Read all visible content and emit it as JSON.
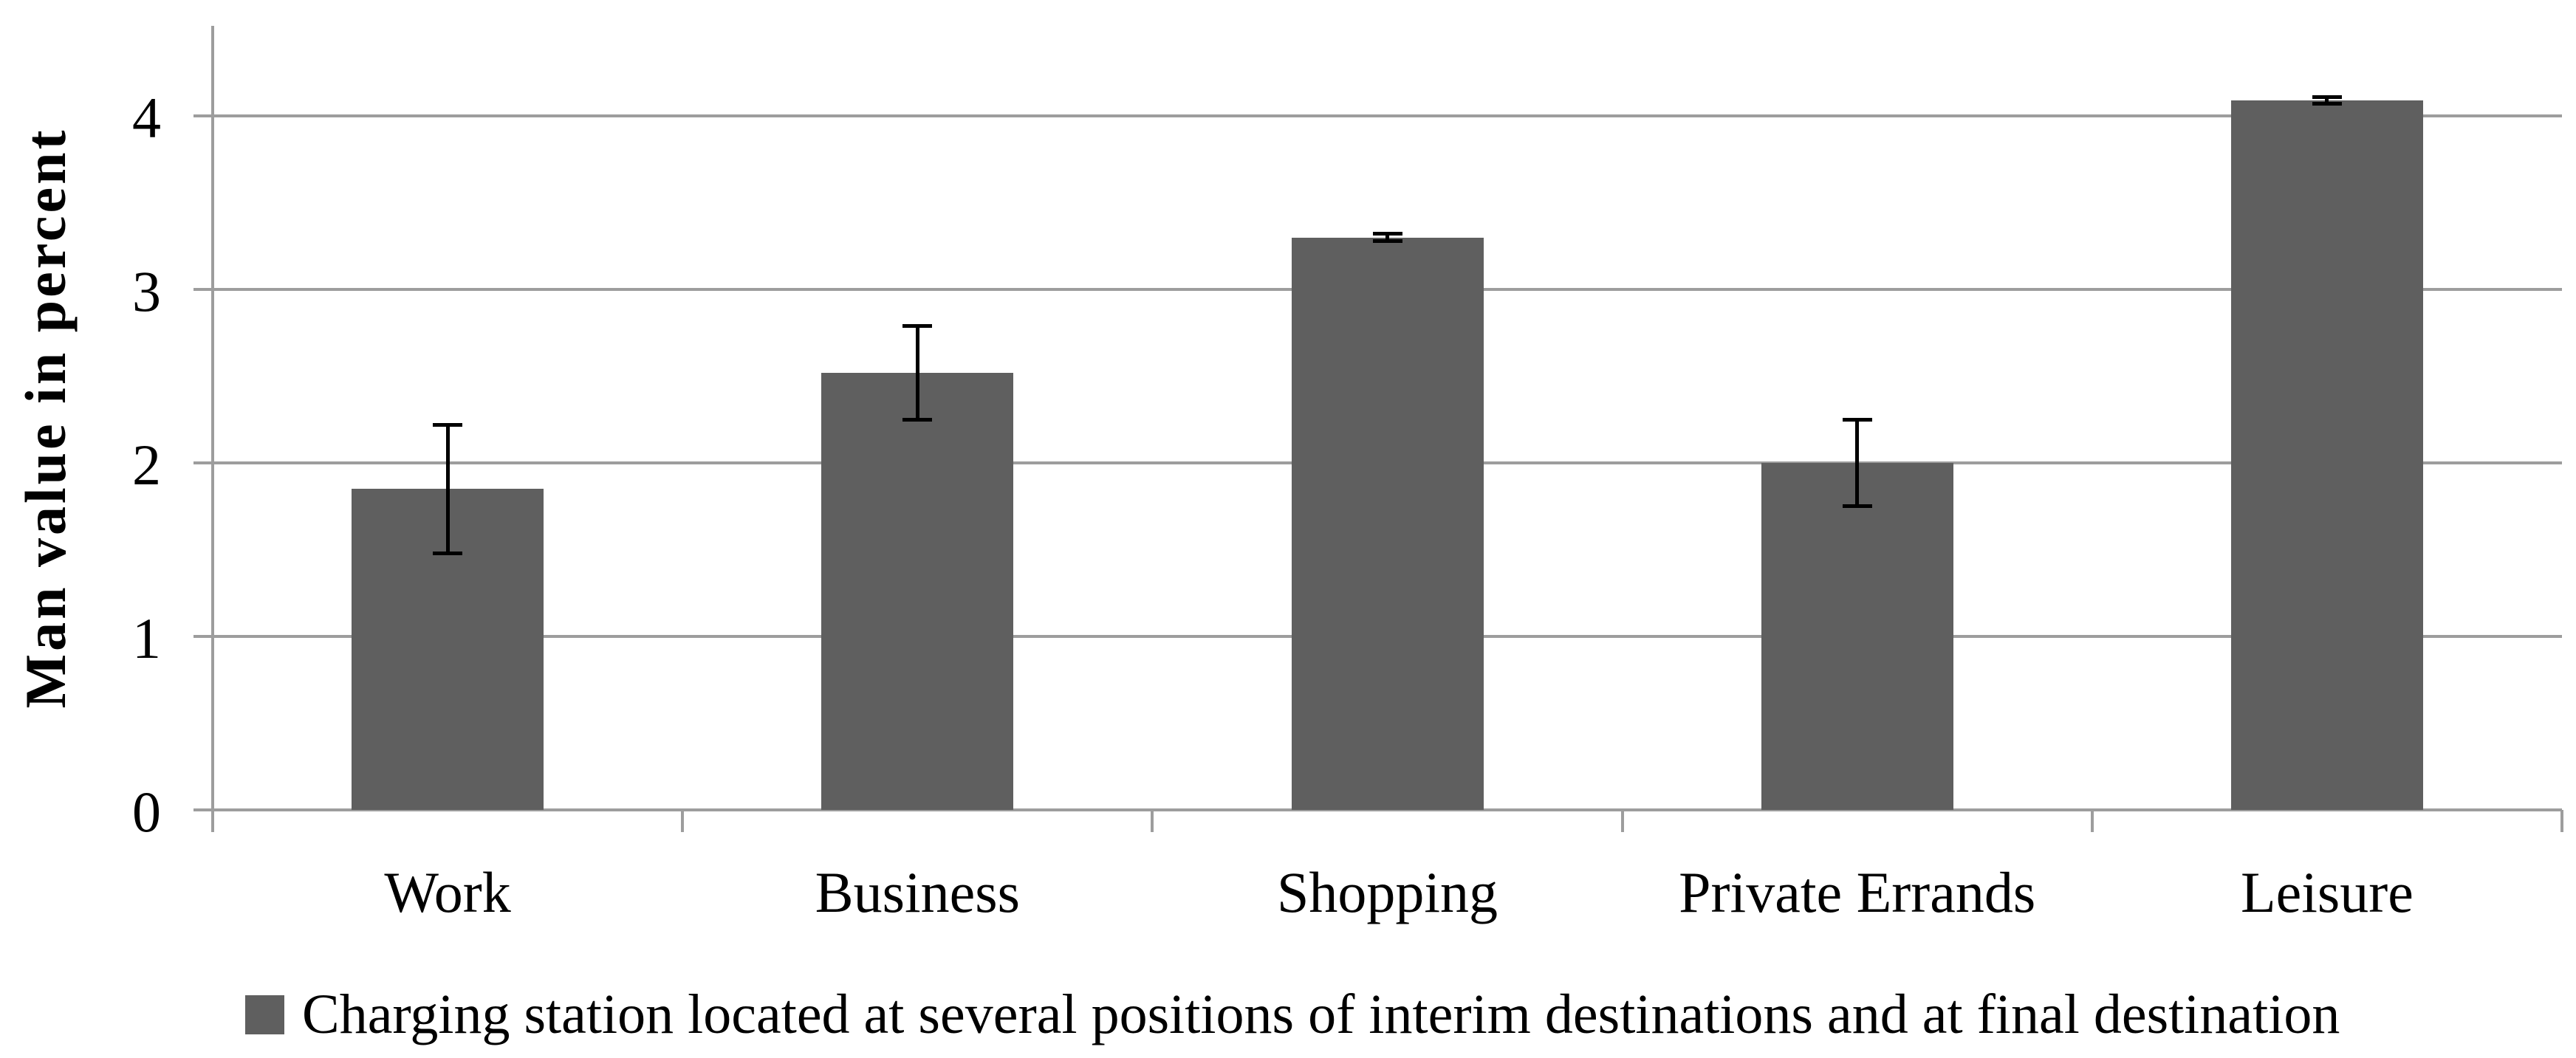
{
  "chart_data": {
    "type": "bar",
    "title": "",
    "categories": [
      "Work",
      "Business",
      "Shopping",
      "Private Errands",
      "Leisure"
    ],
    "values": [
      1.85,
      2.52,
      3.3,
      2.0,
      4.09
    ],
    "error_bars": [
      0.37,
      0.27,
      0.02,
      0.25,
      0.02
    ],
    "xlabel": "",
    "ylabel": "Man value in percent",
    "yticks": [
      0,
      1,
      2,
      3,
      4
    ],
    "ylim": [
      0,
      4.5
    ],
    "grid": true,
    "legend": {
      "position": "bottom",
      "label": "Charging station located at several positions of interim destinations and at final destination"
    },
    "colors": {
      "bar": "#5f5f5f",
      "gridline": "#9d9d9d",
      "axis": "#9d9d9d",
      "error_bar": "#000000",
      "text": "#000000",
      "background": "#ffffff"
    }
  }
}
